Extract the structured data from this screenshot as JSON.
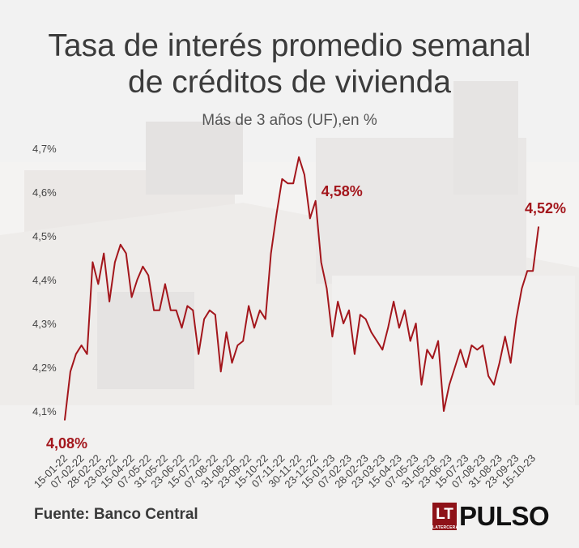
{
  "title_line1": "Tasa de interés promedio semanal",
  "title_line2": "de créditos de vivienda",
  "subtitle": "Más de 3 años (UF),en %",
  "source": "Fuente: Banco Central",
  "logo": {
    "badge": "LT",
    "badge_small": "LATERCERA",
    "brand": "PULSO"
  },
  "colors": {
    "line": "#a3161c",
    "axis_text": "#444444",
    "title": "#3b3b3b",
    "brand": "#8e1218"
  },
  "chart_data": {
    "type": "line",
    "title": "Tasa de interés promedio semanal de créditos de vivienda",
    "subtitle": "Más de 3 años (UF),en %",
    "ylim": [
      4.05,
      4.7
    ],
    "yticks": [
      4.1,
      4.2,
      4.3,
      4.4,
      4.5,
      4.6,
      4.7
    ],
    "ytick_labels": [
      "4,1%",
      "4,2%",
      "4,3%",
      "4,4%",
      "4,5%",
      "4,6%",
      "4,7%"
    ],
    "grid": false,
    "xtick_labels": [
      "15-01-22",
      "07-02-22",
      "28-02-22",
      "23-03-22",
      "15-04-22",
      "07-05-22",
      "31-05-22",
      "23-06-22",
      "15-07-22",
      "07-08-22",
      "31-08-22",
      "23-09-22",
      "15-10-22",
      "07-11-22",
      "30-11-22",
      "23-12-22",
      "15-01-23",
      "07-02-23",
      "28-02-23",
      "23-03-23",
      "15-04-23",
      "07-05-23",
      "31-05-23",
      "23-06-23",
      "15-07-23",
      "07-08-23",
      "31-08-23",
      "23-09-23",
      "15-10-23"
    ],
    "series": [
      {
        "values": [
          4.08,
          4.19,
          4.23,
          4.25,
          4.23,
          4.44,
          4.39,
          4.46,
          4.35,
          4.44,
          4.48,
          4.46,
          4.36,
          4.4,
          4.43,
          4.41,
          4.33,
          4.33,
          4.39,
          4.33,
          4.33,
          4.29,
          4.34,
          4.33,
          4.23,
          4.31,
          4.33,
          4.32,
          4.19,
          4.28,
          4.21,
          4.25,
          4.26,
          4.34,
          4.29,
          4.33,
          4.31,
          4.46,
          4.55,
          4.63,
          4.62,
          4.62,
          4.68,
          4.64,
          4.54,
          4.58,
          4.44,
          4.38,
          4.27,
          4.35,
          4.3,
          4.33,
          4.23,
          4.32,
          4.31,
          4.28,
          4.26,
          4.24,
          4.29,
          4.35,
          4.29,
          4.33,
          4.26,
          4.3,
          4.16,
          4.24,
          4.22,
          4.26,
          4.1,
          4.16,
          4.2,
          4.24,
          4.2,
          4.25,
          4.24,
          4.25,
          4.18,
          4.16,
          4.21,
          4.27,
          4.21,
          4.31,
          4.38,
          4.42,
          4.42,
          4.52
        ]
      }
    ],
    "annotations": [
      {
        "label": "4,08%",
        "index": 0
      },
      {
        "label": "4,58%",
        "index": 45
      },
      {
        "label": "4,52%",
        "index": 85
      }
    ]
  }
}
